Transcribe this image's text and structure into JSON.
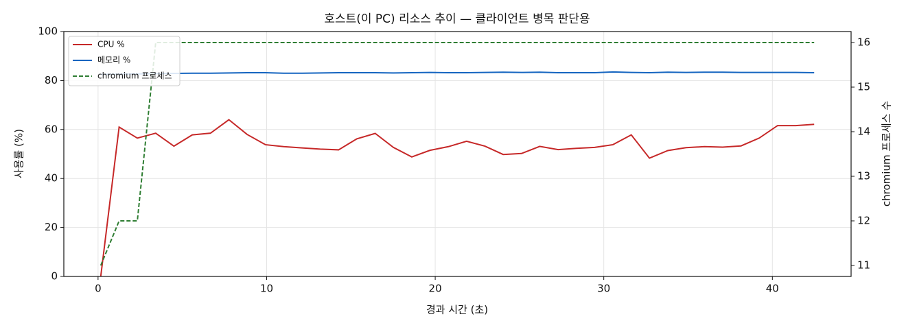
{
  "chart_data": {
    "type": "line",
    "title": "호스트(이 PC) 리소스 추이 — 클라이언트 병목 판단용",
    "x_label": "경과 시간 (초)",
    "y_label": "사용률 (%)",
    "y2_label": "chromium 프로세스 수",
    "x": [
      0.16,
      1.25,
      2.33,
      3.42,
      4.5,
      5.59,
      6.67,
      7.76,
      8.84,
      9.93,
      11.01,
      12.1,
      13.18,
      14.27,
      15.35,
      16.44,
      17.52,
      18.61,
      19.69,
      20.78,
      21.86,
      22.95,
      24.03,
      25.12,
      26.2,
      27.29,
      28.37,
      29.46,
      30.54,
      31.63,
      32.71,
      33.8,
      34.88,
      35.97,
      37.05,
      38.14,
      39.22,
      40.31,
      41.39,
      42.48
    ],
    "series": [
      {
        "name": "CPU %",
        "color": "#c62828",
        "values": [
          0,
          61,
          56.5,
          58.5,
          53.2,
          57.8,
          58.5,
          64,
          58,
          53.8,
          53,
          52.5,
          52,
          51.7,
          56.2,
          58.4,
          52.7,
          48.8,
          51.5,
          53,
          55.2,
          53.2,
          49.8,
          50.2,
          53.1,
          51.8,
          52.3,
          52.7,
          53.8,
          57.8,
          48.3,
          51.4,
          52.6,
          53,
          52.8,
          53.3,
          56.5,
          61.6,
          61.6,
          62.1
        ]
      },
      {
        "name": "메모리 %",
        "color": "#1565c0",
        "values": [
          82.5,
          82.6,
          82.7,
          82.8,
          82.9,
          83,
          83,
          83.1,
          83.2,
          83.2,
          83,
          83,
          83.1,
          83.2,
          83.2,
          83.2,
          83.1,
          83.2,
          83.3,
          83.2,
          83.2,
          83.3,
          83.4,
          83.3,
          83.4,
          83.2,
          83.2,
          83.2,
          83.5,
          83.3,
          83.2,
          83.4,
          83.3,
          83.4,
          83.4,
          83.3,
          83.3,
          83.3,
          83.3,
          83.2
        ]
      },
      {
        "name": "chromium 프로세스",
        "color": "#2e7d32",
        "axis": "y2",
        "linestyle": "dashed",
        "values": [
          11,
          12,
          12,
          16,
          16,
          16,
          16,
          16,
          16,
          16,
          16,
          16,
          16,
          16,
          16,
          16,
          16,
          16,
          16,
          16,
          16,
          16,
          16,
          16,
          16,
          16,
          16,
          16,
          16,
          16,
          16,
          16,
          16,
          16,
          16,
          16,
          16,
          16,
          16,
          16
        ]
      }
    ],
    "xlim": [
      -2.03,
      44.67
    ],
    "xticks": [
      0,
      10,
      20,
      30,
      40
    ],
    "ylim": [
      0,
      100
    ],
    "yticks": [
      0,
      20,
      40,
      60,
      80,
      100
    ],
    "y2lim": [
      10.754,
      16.246
    ],
    "y2ticks": [
      11,
      12,
      13,
      14,
      15,
      16
    ],
    "grid": true,
    "legend": "upper-left"
  }
}
